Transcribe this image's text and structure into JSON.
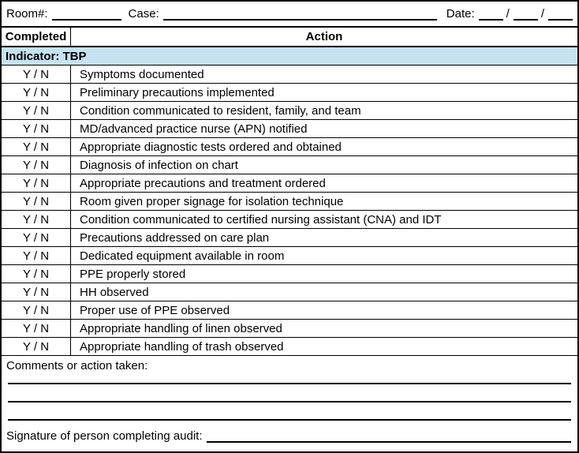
{
  "form": {
    "header": {
      "room_label": "Room#:",
      "case_label": "Case:",
      "date_label": "Date:",
      "date_separator": "/"
    },
    "table": {
      "completed_column": "Completed",
      "action_column": "Action",
      "indicator_label": "Indicator: TBP",
      "yn_label": "Y / N",
      "actions": [
        "Symptoms documented",
        "Preliminary precautions implemented",
        "Condition communicated to resident, family, and team",
        "MD/advanced practice nurse (APN) notified",
        "Appropriate diagnostic tests ordered and obtained",
        "Diagnosis of infection on chart",
        "Appropriate precautions and treatment ordered",
        "Room given proper signage for isolation technique",
        "Condition communicated to certified nursing assistant (CNA) and IDT",
        "Precautions addressed on care plan",
        "Dedicated equipment available in room",
        "PPE properly stored",
        "HH observed",
        "Proper use of PPE observed",
        "Appropriate handling of linen observed",
        "Appropriate handling of trash observed"
      ]
    },
    "footer": {
      "comments_label": "Comments or action taken:",
      "signature_label": "Signature of person completing audit:",
      "comment_line_count": 3
    },
    "colors": {
      "indicator_row_bg": "#C6E2F0",
      "border": "#000000"
    }
  }
}
